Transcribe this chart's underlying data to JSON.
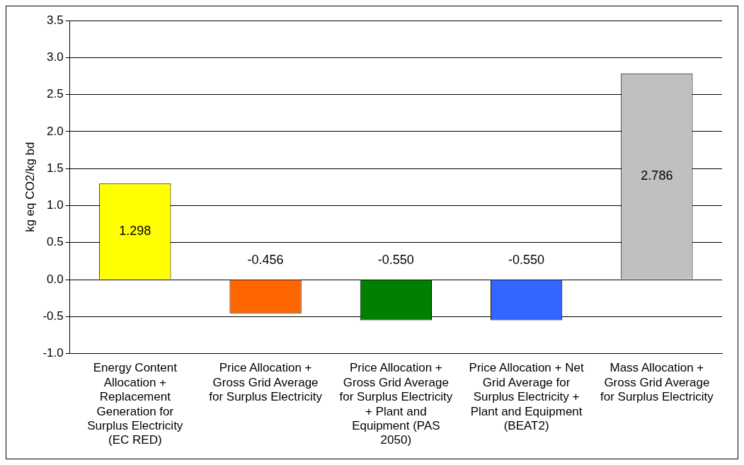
{
  "chart_data": {
    "type": "bar",
    "ylabel": "kg eq CO2/kg bd",
    "categories": [
      "Energy Content Allocation + Replacement Generation for Surplus Electricity (EC RED)",
      "Price Allocation + Gross Grid Average for Surplus Electricity",
      "Price Allocation + Gross Grid Average for Surplus Electricity + Plant and Equipment (PAS 2050)",
      "Price Allocation + Net Grid Average for Surplus Electricity + Plant and Equipment (BEAT2)",
      "Mass Allocation + Gross Grid Average for Surplus Electricity"
    ],
    "values": [
      1.298,
      -0.456,
      -0.55,
      -0.55,
      2.786
    ],
    "value_labels": [
      "1.298",
      "-0.456",
      "-0.550",
      "-0.550",
      "2.786"
    ],
    "colors": [
      "#ffff00",
      "#ff6600",
      "#008000",
      "#3366ff",
      "#c0c0c0"
    ],
    "ylim": [
      -1,
      3.5
    ],
    "yticks": [
      {
        "value": -1,
        "label": "-1.0"
      },
      -0.5,
      {
        "value": 0,
        "label": "0.0"
      },
      0.5,
      {
        "value": 1,
        "label": "1.0"
      },
      1.5,
      {
        "value": 2,
        "label": "2.0"
      },
      2.5,
      {
        "value": 3,
        "label": "3.0"
      },
      3.5
    ],
    "grid": "y",
    "legend": false
  }
}
